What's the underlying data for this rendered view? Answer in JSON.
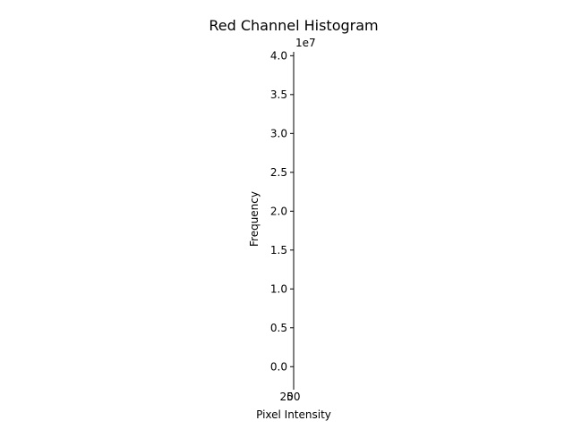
{
  "chart_data": {
    "type": "bar",
    "title": "Red Channel Histogram",
    "xlabel": "Pixel Intensity",
    "ylabel": "Frequency",
    "y_offset_label": "1e7",
    "y_scale": 10000000,
    "y_ticks": [
      0.0,
      0.5,
      1.0,
      1.5,
      2.0,
      2.5,
      3.0,
      3.5,
      4.0
    ],
    "y_tick_labels": [
      "0.0",
      "0.5",
      "1.0",
      "1.5",
      "2.0",
      "2.5",
      "3.0",
      "3.5",
      "4.0"
    ],
    "ylim": [
      -0.25,
      4.05
    ],
    "x_tick_labels": [
      "0",
      "250"
    ],
    "grid": false,
    "legend": "none",
    "series": []
  }
}
